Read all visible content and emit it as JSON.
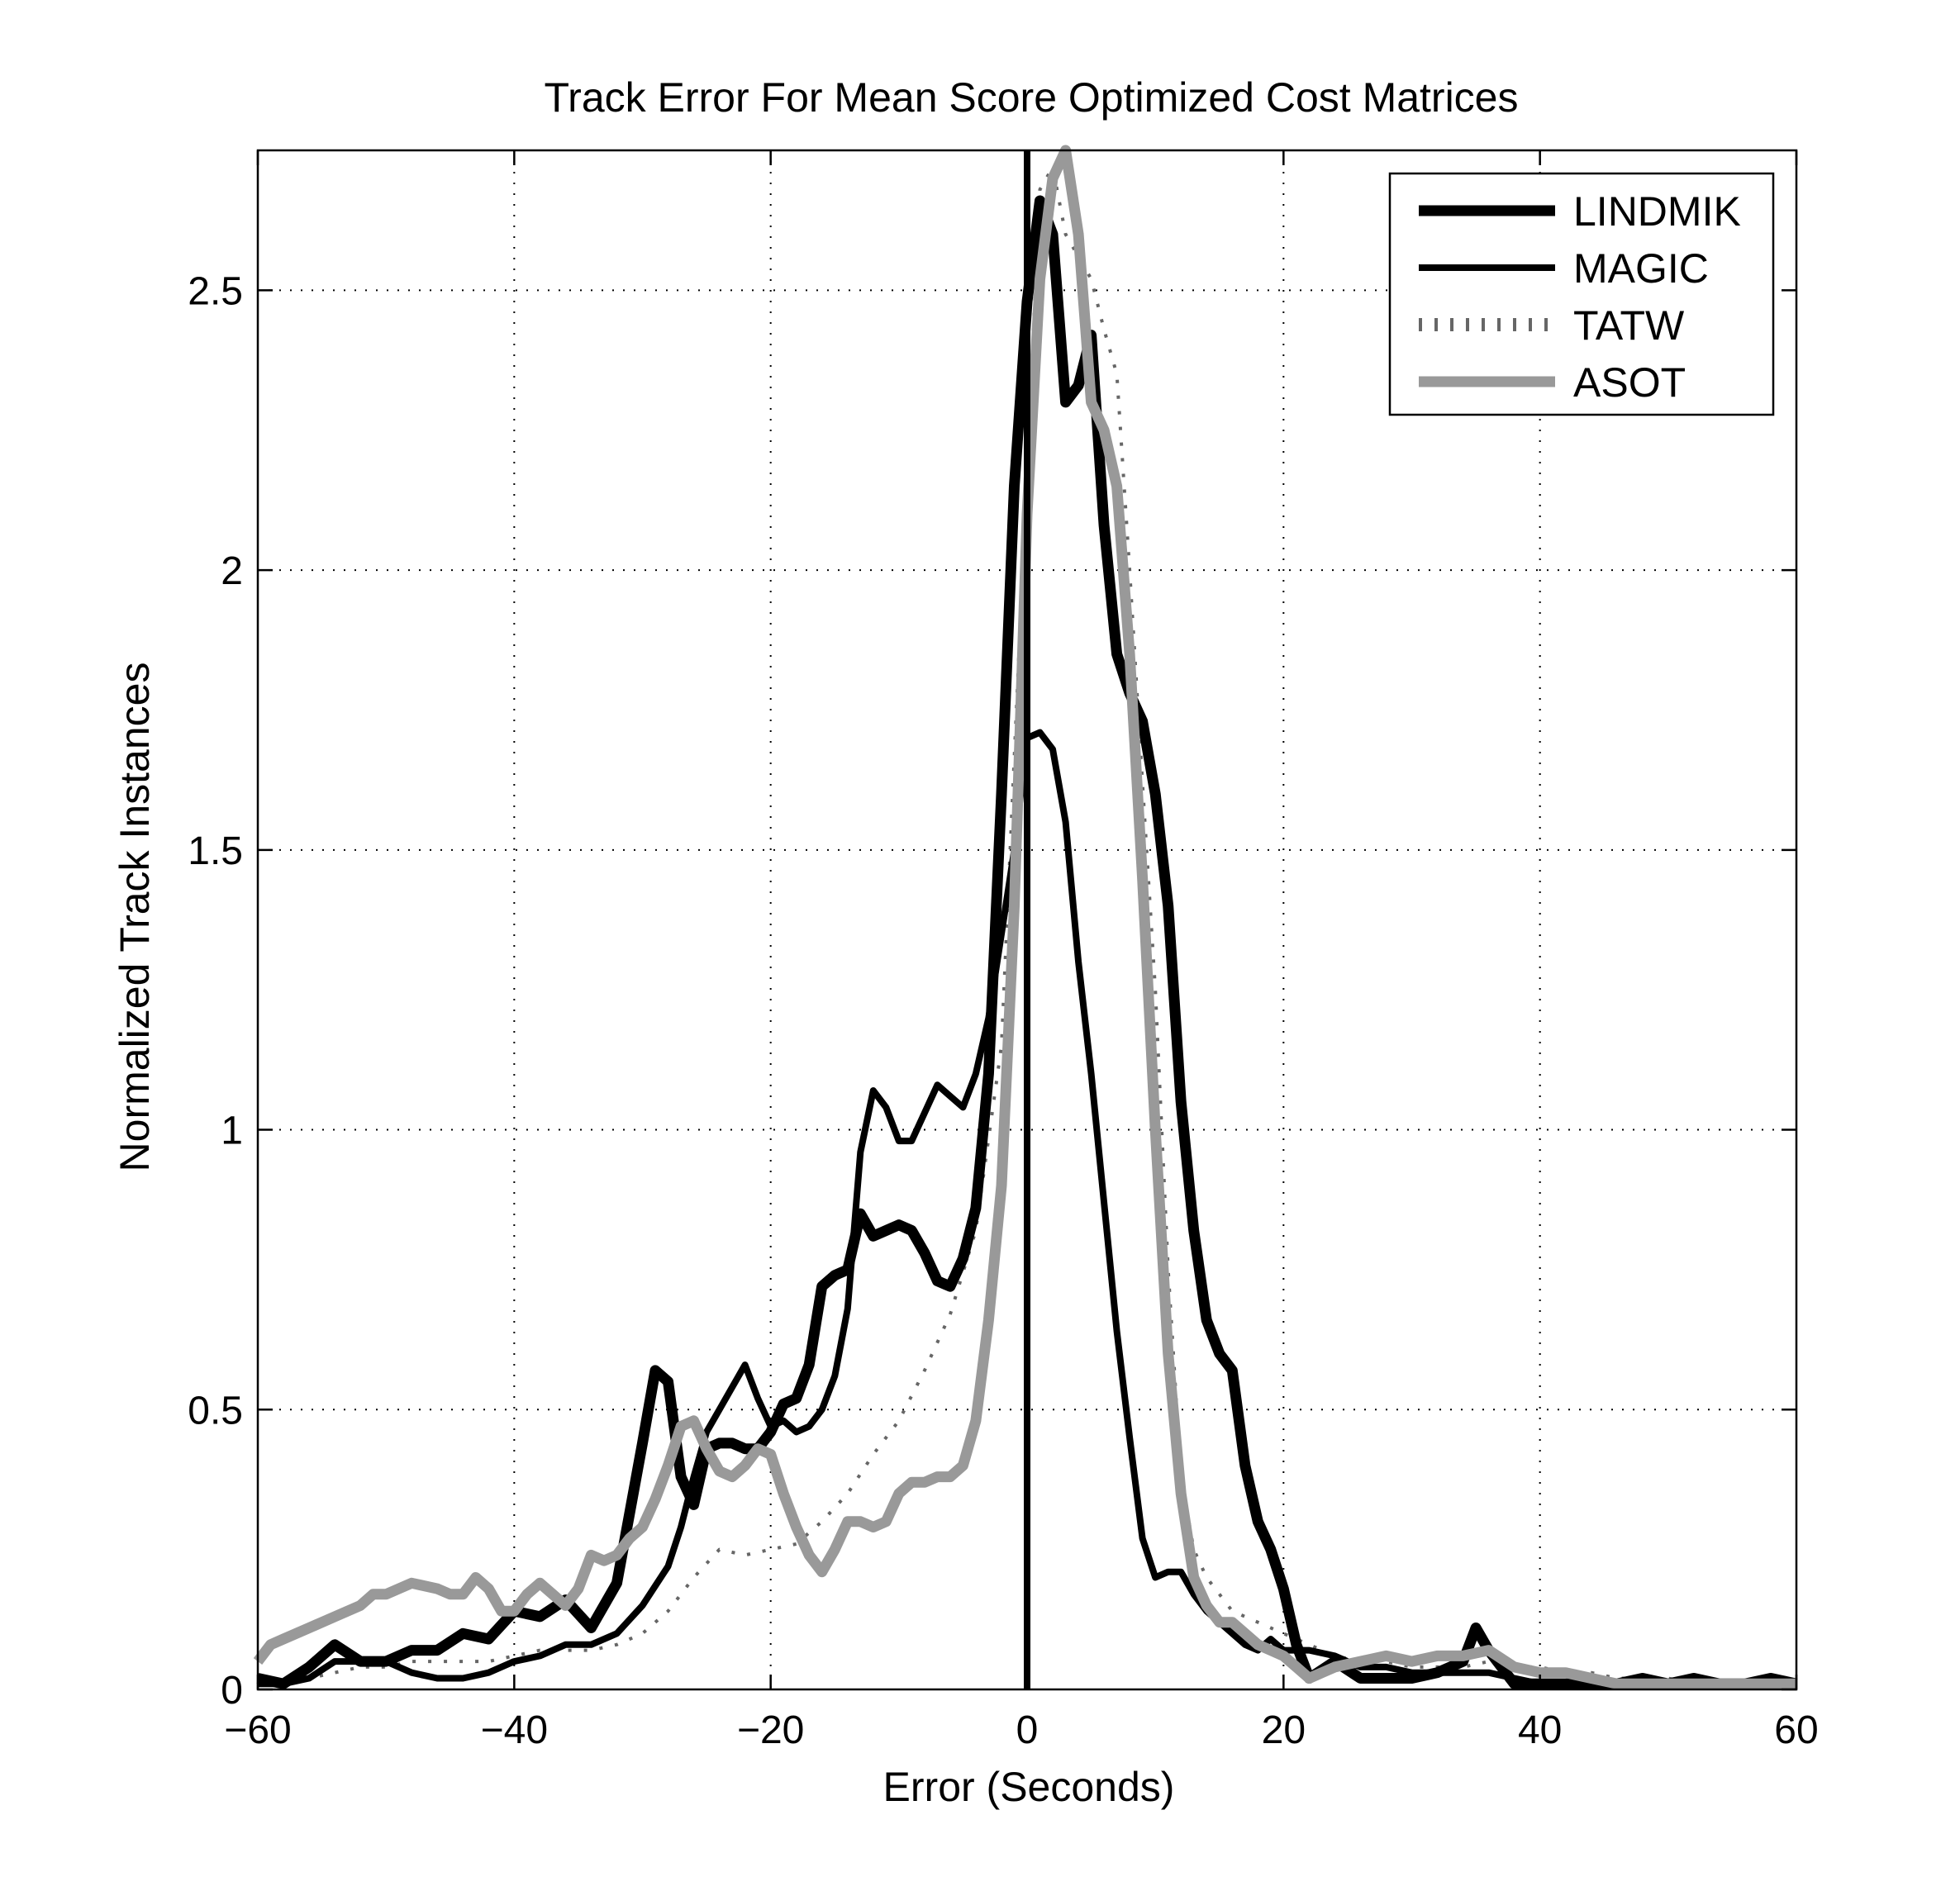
{
  "chart_data": {
    "type": "line",
    "title": "Track Error For Mean Score Optimized Cost Matrices",
    "xlabel": "Error (Seconds)",
    "ylabel": "Normalized Track Instances",
    "xlim": [
      -60,
      60
    ],
    "ylim": [
      0,
      2.75
    ],
    "xticks": [
      -60,
      -40,
      -20,
      0,
      20,
      40,
      60
    ],
    "xtick_labels": [
      "−60",
      "−40",
      "−20",
      "0",
      "20",
      "40",
      "60"
    ],
    "yticks": [
      0,
      0.5,
      1,
      1.5,
      2,
      2.5
    ],
    "ytick_labels": [
      "0",
      "0.5",
      "1",
      "1.5",
      "2",
      "2.5"
    ],
    "grid": true,
    "legend_position": "top-right",
    "vline_x": 0,
    "series": [
      {
        "name": "LINDMIK",
        "color": "#000000",
        "style": "solid-thick",
        "x": [
          -60,
          -58,
          -56,
          -54,
          -52,
          -50,
          -48,
          -46,
          -44,
          -42,
          -40,
          -38,
          -36,
          -34,
          -32,
          -30,
          -29,
          -28,
          -27,
          -26,
          -25,
          -24,
          -23,
          -22,
          -21,
          -20,
          -19,
          -18,
          -17,
          -16,
          -15,
          -14,
          -13,
          -12,
          -11,
          -10,
          -9,
          -8,
          -7,
          -6,
          -5,
          -4,
          -3,
          -2,
          -1,
          0,
          1,
          2,
          3,
          4,
          5,
          6,
          7,
          8,
          9,
          10,
          11,
          12,
          13,
          14,
          15,
          16,
          17,
          18,
          19,
          20,
          21,
          22,
          24,
          26,
          28,
          30,
          32,
          34,
          35,
          36,
          38,
          40,
          42,
          44,
          46,
          48,
          50,
          52,
          54,
          56,
          58,
          60
        ],
        "y": [
          0.02,
          0.01,
          0.04,
          0.08,
          0.05,
          0.05,
          0.07,
          0.07,
          0.1,
          0.09,
          0.14,
          0.13,
          0.16,
          0.11,
          0.19,
          0.44,
          0.57,
          0.55,
          0.38,
          0.33,
          0.43,
          0.44,
          0.44,
          0.43,
          0.43,
          0.46,
          0.51,
          0.52,
          0.58,
          0.72,
          0.74,
          0.75,
          0.85,
          0.81,
          0.82,
          0.83,
          0.82,
          0.78,
          0.73,
          0.72,
          0.77,
          0.86,
          1.1,
          1.6,
          2.15,
          2.48,
          2.66,
          2.6,
          2.3,
          2.33,
          2.42,
          2.08,
          1.85,
          1.78,
          1.73,
          1.6,
          1.4,
          1.05,
          0.82,
          0.66,
          0.6,
          0.57,
          0.4,
          0.3,
          0.25,
          0.18,
          0.08,
          0.02,
          0.05,
          0.02,
          0.02,
          0.02,
          0.03,
          0.05,
          0.11,
          0.07,
          0.01,
          0.01,
          0.01,
          0.01,
          0.01,
          0.02,
          0.01,
          0.02,
          0.01,
          0.01,
          0.02,
          0.01
        ]
      },
      {
        "name": "MAGIC",
        "color": "#000000",
        "style": "solid",
        "x": [
          -60,
          -58,
          -56,
          -54,
          -52,
          -50,
          -48,
          -46,
          -44,
          -42,
          -40,
          -38,
          -36,
          -34,
          -32,
          -30,
          -28,
          -27,
          -26,
          -25,
          -24,
          -23,
          -22,
          -21,
          -20,
          -19,
          -18,
          -17,
          -16,
          -15,
          -14,
          -13,
          -12,
          -11,
          -10,
          -9,
          -8,
          -7,
          -6,
          -5,
          -4,
          -3,
          -2,
          -1,
          0,
          1,
          2,
          3,
          4,
          5,
          6,
          7,
          8,
          9,
          10,
          11,
          12,
          13,
          14,
          15,
          16,
          17,
          18,
          19,
          20,
          22,
          24,
          26,
          28,
          30,
          32,
          34,
          36,
          38,
          40,
          42,
          44,
          46,
          48,
          50,
          52,
          54,
          56,
          58,
          60
        ],
        "y": [
          0.01,
          0.01,
          0.02,
          0.05,
          0.05,
          0.05,
          0.03,
          0.02,
          0.02,
          0.03,
          0.05,
          0.06,
          0.08,
          0.08,
          0.1,
          0.15,
          0.22,
          0.29,
          0.38,
          0.46,
          0.5,
          0.54,
          0.58,
          0.52,
          0.47,
          0.48,
          0.46,
          0.47,
          0.5,
          0.56,
          0.68,
          0.96,
          1.07,
          1.04,
          0.98,
          0.98,
          1.03,
          1.08,
          1.06,
          1.04,
          1.1,
          1.2,
          1.35,
          1.5,
          1.7,
          1.71,
          1.68,
          1.55,
          1.3,
          1.1,
          0.87,
          0.64,
          0.45,
          0.27,
          0.2,
          0.21,
          0.21,
          0.17,
          0.14,
          0.12,
          0.1,
          0.08,
          0.07,
          0.09,
          0.07,
          0.07,
          0.06,
          0.04,
          0.04,
          0.03,
          0.03,
          0.03,
          0.03,
          0.02,
          0.01,
          0.01,
          0.01,
          0.01,
          0.01,
          0.01,
          0.01,
          0.01,
          0.01,
          0.01,
          0.01
        ]
      },
      {
        "name": "TATW",
        "color": "#666666",
        "style": "dotted",
        "x": [
          -60,
          -58,
          -56,
          -54,
          -52,
          -50,
          -48,
          -46,
          -44,
          -42,
          -40,
          -38,
          -36,
          -34,
          -32,
          -30,
          -28,
          -26,
          -24,
          -22,
          -20,
          -18,
          -16,
          -14,
          -12,
          -10,
          -8,
          -6,
          -4,
          -2,
          0,
          1,
          2,
          3,
          4,
          5,
          6,
          7,
          8,
          9,
          10,
          11,
          12,
          13,
          14,
          15,
          16,
          17,
          18,
          20,
          22,
          24,
          26,
          28,
          30,
          32,
          34,
          36,
          38,
          40,
          42,
          44,
          46,
          48,
          50,
          52,
          54,
          56,
          58,
          60
        ],
        "y": [
          0.01,
          0.01,
          0.02,
          0.03,
          0.04,
          0.04,
          0.05,
          0.05,
          0.05,
          0.05,
          0.06,
          0.07,
          0.07,
          0.07,
          0.08,
          0.1,
          0.14,
          0.2,
          0.25,
          0.24,
          0.25,
          0.26,
          0.3,
          0.35,
          0.42,
          0.48,
          0.57,
          0.67,
          0.82,
          1.15,
          2.18,
          2.68,
          2.72,
          2.6,
          2.56,
          2.52,
          2.43,
          2.35,
          2.0,
          1.62,
          1.25,
          0.75,
          0.38,
          0.25,
          0.2,
          0.17,
          0.14,
          0.13,
          0.12,
          0.1,
          0.08,
          0.06,
          0.05,
          0.05,
          0.04,
          0.04,
          0.04,
          0.05,
          0.04,
          0.04,
          0.03,
          0.03,
          0.02,
          0.02,
          0.02,
          0.01,
          0.01,
          0.01,
          0.01,
          0.01
        ]
      },
      {
        "name": "ASOT",
        "color": "#999999",
        "style": "solid-thick",
        "x": [
          -60,
          -59,
          -58,
          -56,
          -54,
          -52,
          -51,
          -50,
          -48,
          -46,
          -45,
          -44,
          -43,
          -42,
          -41,
          -40,
          -39,
          -38,
          -37,
          -36,
          -35,
          -34,
          -33,
          -32,
          -31,
          -30,
          -29,
          -28,
          -27,
          -26,
          -25,
          -24,
          -23,
          -22,
          -21,
          -20,
          -19,
          -18,
          -17,
          -16,
          -15,
          -14,
          -13,
          -12,
          -11,
          -10,
          -9,
          -8,
          -7,
          -6,
          -5,
          -4,
          -3,
          -2,
          -1,
          0,
          1,
          2,
          3,
          4,
          5,
          6,
          7,
          8,
          9,
          10,
          11,
          12,
          13,
          14,
          15,
          16,
          17,
          18,
          19,
          20,
          21,
          22,
          23,
          24,
          26,
          28,
          30,
          32,
          34,
          36,
          38,
          40,
          42,
          44,
          46,
          48,
          50,
          52,
          54,
          56,
          58,
          60
        ],
        "y": [
          0.05,
          0.08,
          0.09,
          0.11,
          0.13,
          0.15,
          0.17,
          0.17,
          0.19,
          0.18,
          0.17,
          0.17,
          0.2,
          0.18,
          0.14,
          0.14,
          0.17,
          0.19,
          0.17,
          0.15,
          0.18,
          0.24,
          0.23,
          0.24,
          0.27,
          0.29,
          0.34,
          0.4,
          0.47,
          0.48,
          0.43,
          0.39,
          0.38,
          0.4,
          0.43,
          0.42,
          0.35,
          0.29,
          0.24,
          0.21,
          0.25,
          0.3,
          0.3,
          0.29,
          0.3,
          0.35,
          0.37,
          0.37,
          0.38,
          0.38,
          0.4,
          0.48,
          0.66,
          0.9,
          1.4,
          2.1,
          2.52,
          2.7,
          2.75,
          2.6,
          2.3,
          2.25,
          2.15,
          1.85,
          1.45,
          1.0,
          0.6,
          0.35,
          0.2,
          0.15,
          0.12,
          0.12,
          0.1,
          0.08,
          0.07,
          0.06,
          0.04,
          0.02,
          0.03,
          0.04,
          0.05,
          0.06,
          0.05,
          0.06,
          0.06,
          0.07,
          0.04,
          0.03,
          0.03,
          0.02,
          0.01,
          0.01,
          0.01,
          0.01,
          0.01,
          0.01,
          0.01,
          0.01
        ]
      }
    ]
  }
}
